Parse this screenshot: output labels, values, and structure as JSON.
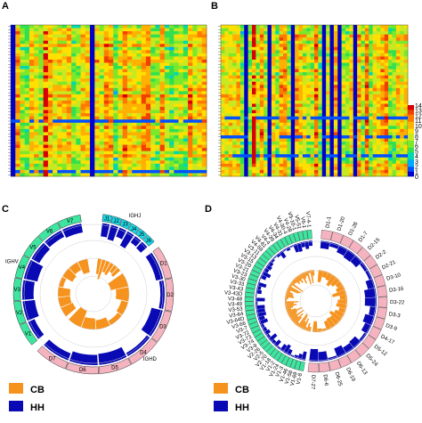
{
  "panels": {
    "A": "A",
    "B": "B",
    "C": "C",
    "D": "D"
  },
  "chart_data": [
    {
      "type": "heatmap",
      "panel": "A",
      "rows": 48,
      "cols": 42,
      "value_range": [
        0,
        14
      ],
      "note_colorscale": [
        "#0000c8",
        "#00a0ff",
        "#00d8a0",
        "#40e040",
        "#c8e820",
        "#ffd000",
        "#ff7a00",
        "#e00000"
      ]
    },
    {
      "type": "heatmap",
      "panel": "B",
      "rows": 48,
      "cols": 48,
      "value_range": [
        0,
        14
      ]
    },
    {
      "type": "colorbar",
      "ticks": [
        "14",
        "13",
        "12",
        "11",
        "10",
        "9",
        "8",
        "7",
        "6",
        "5",
        "4",
        "3",
        "2",
        "1",
        "0"
      ]
    },
    {
      "type": "circular-bar",
      "panel": "C",
      "segments": [
        {
          "label": "J1",
          "group": "IGHJ",
          "color": "#19d7e6"
        },
        {
          "label": "J2",
          "group": "IGHJ",
          "color": "#19d7e6"
        },
        {
          "label": "J3",
          "group": "IGHJ",
          "color": "#19d7e6"
        },
        {
          "label": "J4",
          "group": "IGHJ",
          "color": "#19d7e6"
        },
        {
          "label": "J5",
          "group": "IGHJ",
          "color": "#19d7e6"
        },
        {
          "label": "J6",
          "group": "IGHJ",
          "color": "#19d7e6"
        },
        {
          "label": "D1",
          "group": "IGHD",
          "color": "#f4b3bf"
        },
        {
          "label": "D2",
          "group": "IGHD",
          "color": "#f4b3bf"
        },
        {
          "label": "D3",
          "group": "IGHD",
          "color": "#f4b3bf"
        },
        {
          "label": "D4",
          "group": "IGHD",
          "color": "#f4b3bf"
        },
        {
          "label": "D5",
          "group": "IGHD",
          "color": "#f4b3bf"
        },
        {
          "label": "D6",
          "group": "IGHD",
          "color": "#f4b3bf"
        },
        {
          "label": "D7",
          "group": "IGHD",
          "color": "#f4b3bf"
        },
        {
          "label": "V1",
          "group": "IGHV",
          "color": "#3de6a0"
        },
        {
          "label": "V2",
          "group": "IGHV",
          "color": "#3de6a0"
        },
        {
          "label": "V3",
          "group": "IGHV",
          "color": "#3de6a0"
        },
        {
          "label": "V4",
          "group": "IGHV",
          "color": "#3de6a0"
        },
        {
          "label": "V5",
          "group": "IGHV",
          "color": "#3de6a0"
        },
        {
          "label": "V6",
          "group": "IGHV",
          "color": "#3de6a0"
        },
        {
          "label": "V7",
          "group": "IGHV",
          "color": "#3de6a0"
        }
      ],
      "group_labels": [
        "IGHJ",
        "IGHD",
        "IGHV"
      ]
    },
    {
      "type": "circular-bar",
      "panel": "D",
      "labels_right": [
        "D1-1",
        "D1-20",
        "D1-26",
        "D1-7",
        "D2-15",
        "D2-2",
        "D2-21",
        "D3-10",
        "D3-16",
        "D3-22",
        "D3-3",
        "D3-9",
        "D4-17",
        "D5-12",
        "D5-24",
        "D6-13",
        "D6-19",
        "D6-25",
        "D6-6",
        "D7-27"
      ],
      "labels_left": [
        "V1-8",
        "V1-69",
        "V1-58",
        "V1-46",
        "V1-3",
        "V1-24",
        "V1-2",
        "V1-18",
        "V2-70",
        "V2-5",
        "V2-26",
        "V3-9",
        "V3-74",
        "V3-73",
        "V3-72",
        "V3-7",
        "V3-66",
        "V3-64D",
        "V3-64",
        "V3-53",
        "V3-49",
        "V3-48",
        "V3-43D",
        "V3-43",
        "V3-33",
        "V3-30",
        "V3-23",
        "V3-21",
        "V3-20",
        "V3-15",
        "V3-13",
        "V3-11",
        "V4-59",
        "V4-61",
        "V4-4",
        "V4-39",
        "V4-34",
        "V4-31",
        "V4-30-4",
        "V4-28",
        "V5-10-1",
        "V5-51",
        "V6-1",
        "V7-4-1"
      ]
    }
  ],
  "legend": {
    "items": [
      {
        "label": "CB",
        "color": "#f6931e"
      },
      {
        "label": "HH",
        "color": "#0a0ab4"
      }
    ]
  }
}
